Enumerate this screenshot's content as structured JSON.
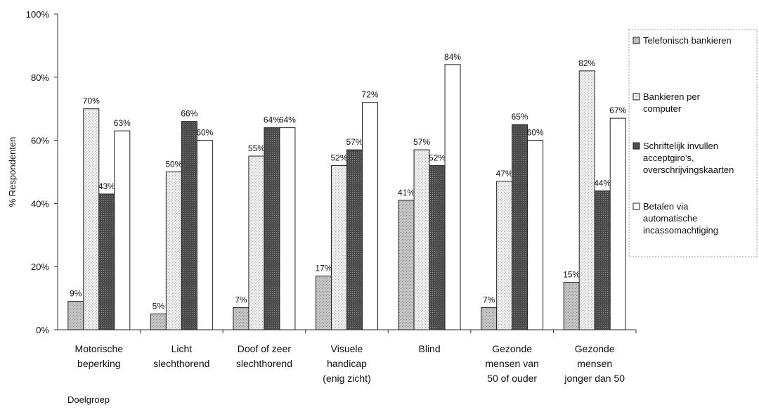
{
  "chart_data": {
    "type": "bar",
    "ylabel": "% Respondenten",
    "xlabel": "Doelgroep",
    "ylim": [
      0,
      100
    ],
    "yticks": [
      "0%",
      "20%",
      "40%",
      "60%",
      "80%",
      "100%"
    ],
    "categories": [
      [
        "Motorische",
        "beperking"
      ],
      [
        "Licht",
        "slechthorend"
      ],
      [
        "Doof of zeer",
        "slechthorend"
      ],
      [
        "Visuele",
        "handicap",
        "(enig zicht)"
      ],
      [
        "Blind"
      ],
      [
        "Gezonde",
        "mensen van",
        "50 of ouder"
      ],
      [
        "Gezonde",
        "mensen",
        "jonger dan 50"
      ]
    ],
    "series": [
      {
        "name": "Telefonisch bankieren",
        "legend_lines": [
          "Telefonisch bankieren"
        ],
        "color": "#b9b9b9",
        "values": [
          9,
          5,
          7,
          17,
          41,
          7,
          15
        ],
        "labels": [
          "9%",
          "5%",
          "7%",
          "17%",
          "41%",
          "7%",
          "15%"
        ]
      },
      {
        "name": "Bankieren per computer",
        "legend_lines": [
          "Bankieren per",
          "computer"
        ],
        "color": "#e4e4e4",
        "values": [
          70,
          50,
          55,
          52,
          57,
          47,
          82
        ],
        "labels": [
          "70%",
          "50%",
          "55%",
          "52%",
          "57%",
          "47%",
          "82%"
        ]
      },
      {
        "name": "Schriftelijk invullen acceptgiro's, overschrijvingskaarten",
        "legend_lines": [
          "Schriftelijk invullen",
          "acceptgiro's,",
          "overschrijvingskaarten"
        ],
        "color": "#5a5a5a",
        "values": [
          43,
          66,
          64,
          57,
          52,
          65,
          44
        ],
        "labels": [
          "43%",
          "66%",
          "64%",
          "57%",
          "52%",
          "65%",
          "44%"
        ]
      },
      {
        "name": "Betalen via automatische incassomachtiging",
        "legend_lines": [
          "Betalen via",
          "automatische",
          "incassomachtiging"
        ],
        "color": "#ffffff",
        "values": [
          63,
          60,
          64,
          72,
          84,
          60,
          67
        ],
        "labels": [
          "63%",
          "60%",
          "64%",
          "72%",
          "84%",
          "60%",
          "67%"
        ]
      }
    ],
    "legend_position": "right",
    "grid": false
  }
}
